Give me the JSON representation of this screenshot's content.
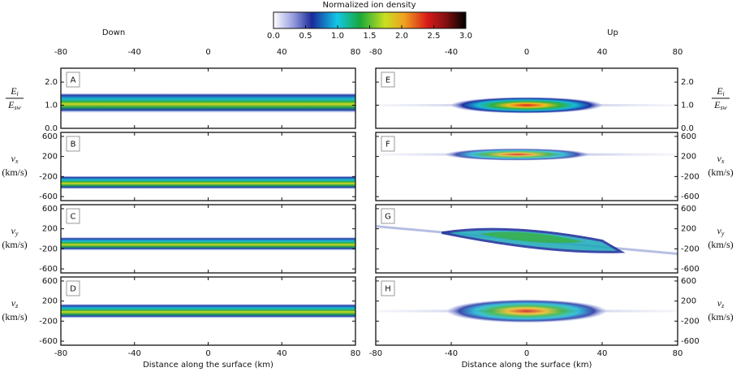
{
  "colorbar": {
    "title": "Normalized ion density",
    "lim": [
      0,
      3
    ],
    "ticks": [
      {
        "value": 0,
        "label": "0.0"
      },
      {
        "value": 0.5,
        "label": "0.5"
      },
      {
        "value": 1,
        "label": "1.0"
      },
      {
        "value": 1.5,
        "label": "1.5"
      },
      {
        "value": 2,
        "label": "2.0"
      },
      {
        "value": 2.5,
        "label": "2.5"
      },
      {
        "value": 3,
        "label": "3.0"
      }
    ]
  },
  "columns": [
    {
      "title": "Down",
      "xlabel": "Distance along the surface (km)"
    },
    {
      "title": "Up",
      "xlabel": "Distance along the surface (km)"
    }
  ],
  "chart_data": [
    {
      "type": "density",
      "panel": "A",
      "ylabel": {
        "symbol": "E",
        "sub": "i",
        "den": "E",
        "densub": "sw"
      },
      "xlim": [
        -80,
        80
      ],
      "xticks": [
        -80,
        -40,
        0,
        40,
        80
      ],
      "ylim": [
        0,
        2.6
      ],
      "yticks": [
        {
          "value": 0,
          "label": "0.0"
        },
        {
          "value": 1,
          "label": "1.0"
        },
        {
          "value": 2,
          "label": "2.0"
        }
      ]
    },
    {
      "type": "density",
      "panel": "B",
      "ylabel": {
        "symbol": "v",
        "sub": "x",
        "unit": "(km/s)"
      },
      "xlim": [
        -80,
        80
      ],
      "xticks": [
        -80,
        -40,
        0,
        40,
        80
      ],
      "ylim": [
        -680,
        680
      ],
      "yticks": [
        -600,
        -200,
        200,
        600
      ]
    },
    {
      "type": "density",
      "panel": "C",
      "ylabel": {
        "symbol": "v",
        "sub": "y",
        "unit": "(km/s)"
      },
      "xlim": [
        -80,
        80
      ],
      "xticks": [
        -80,
        -40,
        0,
        40,
        80
      ],
      "ylim": [
        -680,
        680
      ],
      "yticks": [
        -600,
        -200,
        200,
        600
      ]
    },
    {
      "type": "density",
      "panel": "D",
      "ylabel": {
        "symbol": "v",
        "sub": "z",
        "unit": "(km/s)"
      },
      "xlim": [
        -80,
        80
      ],
      "xticks": [
        -80,
        -40,
        0,
        40,
        80
      ],
      "ylim": [
        -680,
        680
      ],
      "yticks": [
        -600,
        -200,
        200,
        600
      ]
    },
    {
      "type": "density",
      "panel": "E",
      "ylabel": {
        "symbol": "E",
        "sub": "i",
        "den": "E",
        "densub": "sw"
      },
      "xlim": [
        -80,
        80
      ],
      "xticks": [
        -80,
        -40,
        0,
        40,
        80
      ],
      "ylim": [
        0,
        2.6
      ],
      "yticks": [
        {
          "value": 0,
          "label": "0.0"
        },
        {
          "value": 1,
          "label": "1.0"
        },
        {
          "value": 2,
          "label": "2.0"
        }
      ]
    },
    {
      "type": "density",
      "panel": "F",
      "ylabel": {
        "symbol": "v",
        "sub": "x",
        "unit": "(km/s)"
      },
      "xlim": [
        -80,
        80
      ],
      "xticks": [
        -80,
        -40,
        0,
        40,
        80
      ],
      "ylim": [
        -680,
        680
      ],
      "yticks": [
        -600,
        -200,
        200,
        600
      ]
    },
    {
      "type": "density",
      "panel": "G",
      "ylabel": {
        "symbol": "v",
        "sub": "y",
        "unit": "(km/s)"
      },
      "xlim": [
        -80,
        80
      ],
      "xticks": [
        -80,
        -40,
        0,
        40,
        80
      ],
      "ylim": [
        -680,
        680
      ],
      "yticks": [
        -600,
        -200,
        200,
        600
      ]
    },
    {
      "type": "density",
      "panel": "H",
      "ylabel": {
        "symbol": "v",
        "sub": "z",
        "unit": "(km/s)"
      },
      "xlim": [
        -80,
        80
      ],
      "xticks": [
        -80,
        -40,
        0,
        40,
        80
      ],
      "ylim": [
        -680,
        680
      ],
      "yticks": [
        -600,
        -200,
        200,
        600
      ]
    }
  ]
}
